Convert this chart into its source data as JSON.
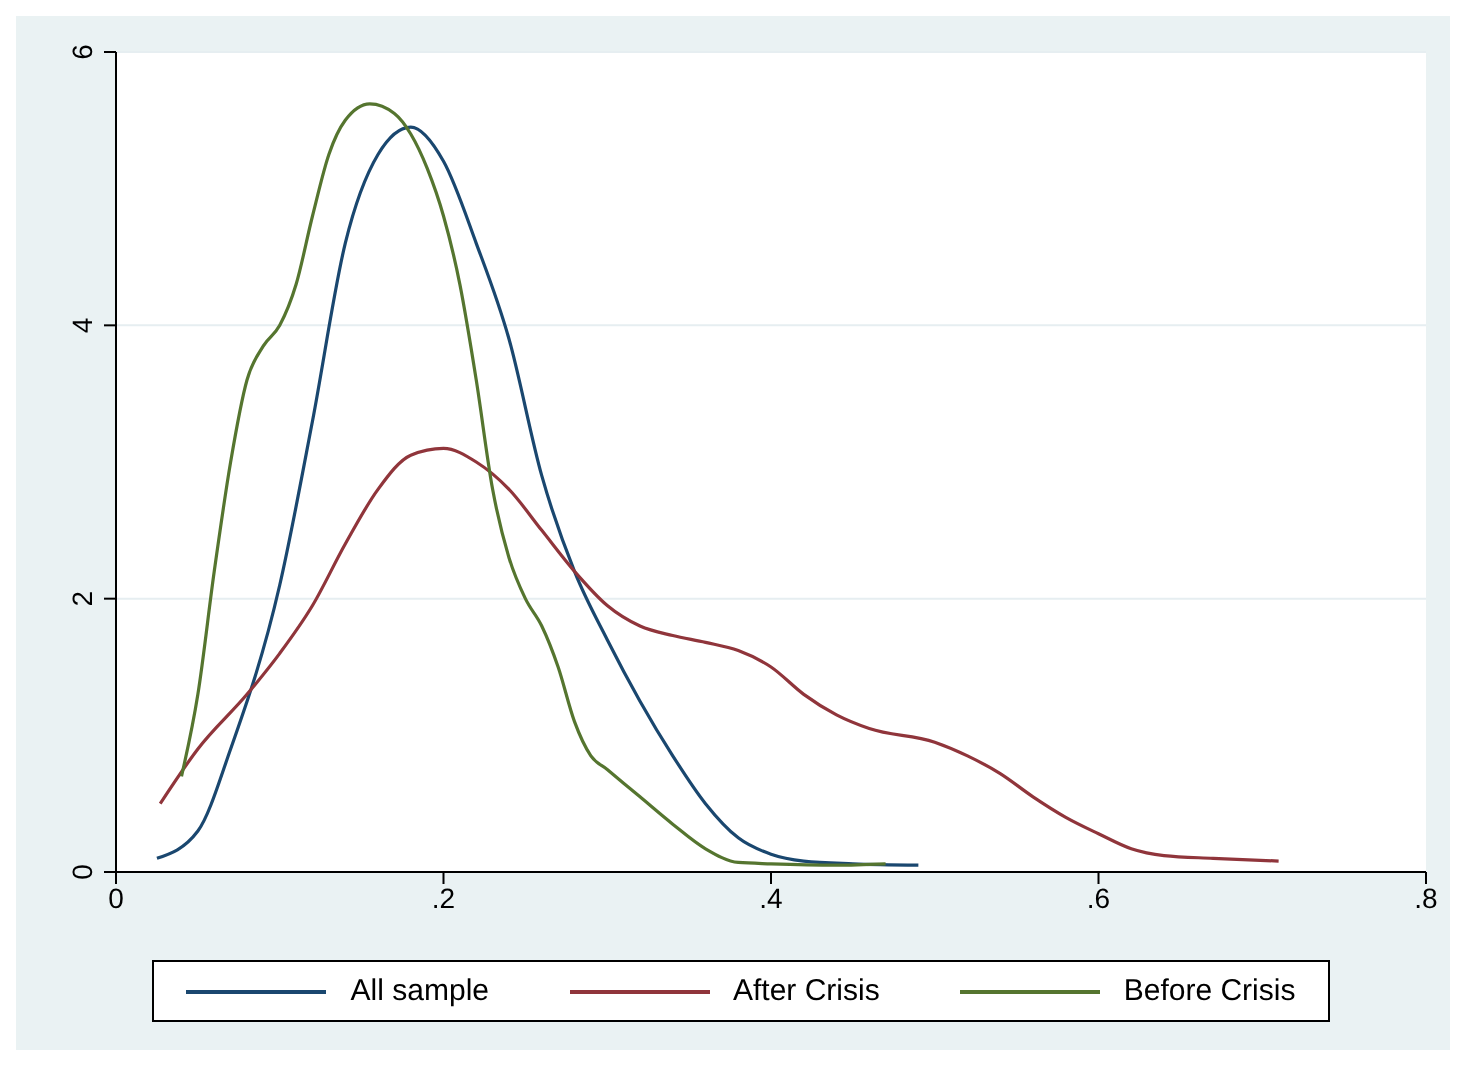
{
  "chart_data": {
    "type": "line",
    "xlim": [
      0,
      0.8
    ],
    "xticks": [
      {
        "value": 0,
        "label": "0"
      },
      {
        "value": 0.2,
        "label": ".2"
      },
      {
        "value": 0.4,
        "label": ".4"
      },
      {
        "value": 0.6,
        "label": ".6"
      },
      {
        "value": 0.8,
        "label": ".8"
      }
    ],
    "ylim": [
      0,
      6
    ],
    "yticks": [
      0,
      2,
      4,
      6
    ],
    "grid": "y",
    "legend": "bottom",
    "marker": "none",
    "line_style": "solid",
    "series": [
      {
        "name": "All sample",
        "color": "#1a476f",
        "x": [
          0.025,
          0.05,
          0.07,
          0.1,
          0.12,
          0.14,
          0.16,
          0.18,
          0.2,
          0.22,
          0.24,
          0.26,
          0.28,
          0.3,
          0.32,
          0.34,
          0.36,
          0.38,
          0.4,
          0.42,
          0.45,
          0.49
        ],
        "values": [
          0.1,
          0.3,
          0.9,
          2.1,
          3.3,
          4.6,
          5.25,
          5.45,
          5.2,
          4.6,
          3.9,
          2.9,
          2.2,
          1.7,
          1.25,
          0.85,
          0.5,
          0.25,
          0.13,
          0.08,
          0.06,
          0.05
        ]
      },
      {
        "name": "After Crisis",
        "color": "#90353b",
        "x": [
          0.027,
          0.05,
          0.08,
          0.1,
          0.12,
          0.14,
          0.16,
          0.18,
          0.2,
          0.22,
          0.24,
          0.26,
          0.28,
          0.3,
          0.32,
          0.34,
          0.36,
          0.38,
          0.4,
          0.42,
          0.44,
          0.46,
          0.5,
          0.52,
          0.54,
          0.56,
          0.58,
          0.6,
          0.62,
          0.64,
          0.67,
          0.71
        ],
        "values": [
          0.5,
          0.9,
          1.3,
          1.6,
          1.95,
          2.4,
          2.8,
          3.05,
          3.1,
          3.0,
          2.8,
          2.5,
          2.2,
          1.95,
          1.8,
          1.73,
          1.68,
          1.62,
          1.5,
          1.3,
          1.15,
          1.05,
          0.95,
          0.85,
          0.72,
          0.55,
          0.4,
          0.28,
          0.17,
          0.12,
          0.1,
          0.08
        ]
      },
      {
        "name": "Before Crisis",
        "color": "#55752f",
        "x": [
          0.04,
          0.05,
          0.06,
          0.07,
          0.08,
          0.09,
          0.1,
          0.11,
          0.12,
          0.13,
          0.14,
          0.155,
          0.17,
          0.18,
          0.19,
          0.2,
          0.21,
          0.22,
          0.23,
          0.24,
          0.25,
          0.26,
          0.27,
          0.28,
          0.29,
          0.3,
          0.32,
          0.34,
          0.36,
          0.38,
          0.4,
          0.44,
          0.47
        ],
        "values": [
          0.7,
          1.3,
          2.2,
          3.0,
          3.6,
          3.85,
          4.0,
          4.3,
          4.8,
          5.25,
          5.5,
          5.62,
          5.55,
          5.4,
          5.15,
          4.8,
          4.3,
          3.6,
          2.8,
          2.3,
          2.0,
          1.8,
          1.5,
          1.1,
          0.85,
          0.75,
          0.55,
          0.35,
          0.17,
          0.07,
          0.06,
          0.05,
          0.06
        ]
      }
    ]
  }
}
